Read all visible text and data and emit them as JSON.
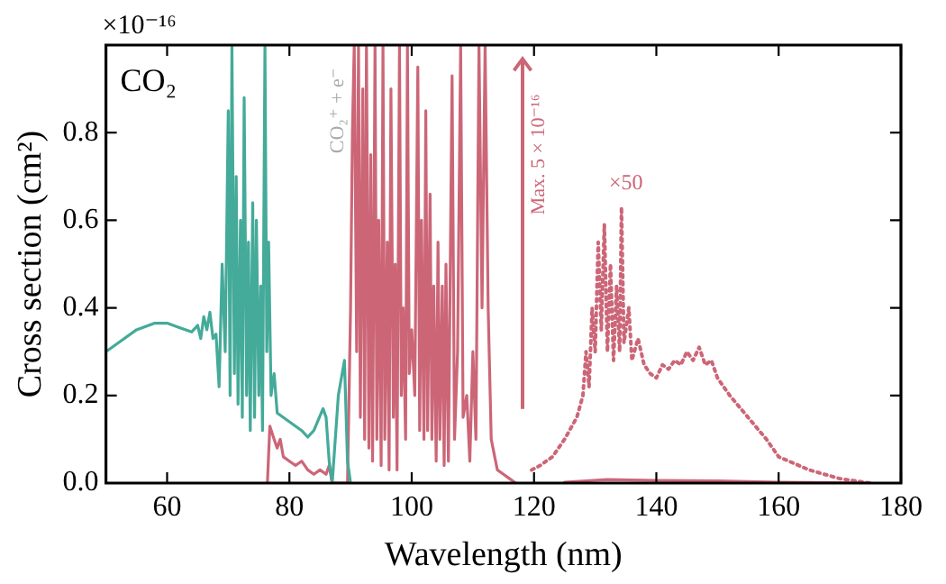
{
  "chart_data": {
    "type": "line",
    "xlabel": "Wavelength (nm)",
    "ylabel": "Cross section (cm²)",
    "xlim": [
      50,
      180
    ],
    "xticks": [
      60,
      80,
      100,
      120,
      140,
      160,
      180
    ],
    "ylim": [
      0,
      1
    ],
    "yticks": [
      {
        "value": 0,
        "label": "0.0"
      },
      0.2,
      0.4,
      0.6,
      0.8
    ],
    "grid": false,
    "legend": false,
    "marker": "none",
    "annotations": [
      "CO₂",
      "×10⁻¹⁶",
      "CO₂⁺ + e⁻",
      "Max. 5 × 10⁻¹⁶",
      "×50"
    ],
    "series": [
      {
        "color": "#44aa99",
        "line_style": "solid",
        "x": [
          50,
          52,
          55,
          58,
          60,
          62,
          64,
          65,
          65.5,
          66,
          66.5,
          67,
          67.5,
          68,
          68.5,
          69,
          69.5,
          70,
          70.3,
          70.6,
          71,
          71.3,
          71.6,
          72,
          72.3,
          72.6,
          73,
          73.3,
          73.6,
          74,
          74.3,
          74.6,
          75,
          75.3,
          75.6,
          76,
          76.3,
          76.6,
          77,
          77.5,
          78,
          80,
          82,
          83,
          84,
          85.5,
          86,
          86.5,
          87,
          88,
          89,
          89.5,
          90
        ],
        "values": [
          0.3,
          0.32,
          0.35,
          0.365,
          0.365,
          0.355,
          0.345,
          0.36,
          0.33,
          0.38,
          0.35,
          0.39,
          0.33,
          0.34,
          0.22,
          0.5,
          0.3,
          0.85,
          0.2,
          1.0,
          0.25,
          0.7,
          0.18,
          0.6,
          0.15,
          0.88,
          0.2,
          0.55,
          0.12,
          0.64,
          0.15,
          0.6,
          0.2,
          0.45,
          0.12,
          1.0,
          0.3,
          0.55,
          0.2,
          0.25,
          0.16,
          0.14,
          0.12,
          0.105,
          0.12,
          0.17,
          0.15,
          0.05,
          0.0,
          0.2,
          0.28,
          0.05,
          0.0
        ]
      },
      {
        "color": "#cc6677",
        "line_style": "solid",
        "x": [
          76.4,
          76.8,
          77.5,
          78,
          78.5,
          79,
          80,
          81,
          82,
          83,
          84,
          85,
          86,
          86.5,
          87,
          89.5,
          90,
          90.3,
          90.6,
          91,
          91.3,
          91.6,
          92,
          92.3,
          92.6,
          93,
          93.3,
          93.6,
          94,
          94.3,
          94.6,
          95,
          95.3,
          95.6,
          96,
          96.3,
          96.6,
          97,
          97.3,
          97.6,
          98,
          98.3,
          98.6,
          99,
          99.3,
          99.6,
          100,
          100.5,
          101,
          101.3,
          101.6,
          102,
          102.3,
          102.6,
          103,
          103.3,
          103.6,
          104,
          104.3,
          104.6,
          105,
          105.3,
          105.6,
          106,
          106.6,
          107,
          107.5,
          108,
          108.4,
          109,
          109.5,
          110,
          110.5,
          111,
          111.5,
          112,
          112.5,
          113,
          114,
          115,
          116,
          117
        ],
        "values": [
          0,
          0.13,
          0.1,
          0.08,
          0.1,
          0.06,
          0.05,
          0.04,
          0.05,
          0.03,
          0.02,
          0.03,
          0.02,
          0.04,
          0,
          0,
          0.4,
          0.8,
          1.0,
          0.3,
          1.0,
          0.15,
          0.9,
          0.1,
          1.0,
          0.08,
          0.75,
          0.05,
          1.0,
          0.1,
          0.6,
          0.04,
          1.0,
          0.1,
          0.55,
          0.03,
          0.9,
          0.15,
          0.5,
          0.03,
          1.0,
          0.2,
          0.4,
          0.1,
          1.0,
          0.25,
          0.35,
          0.2,
          0.95,
          0.12,
          0.6,
          0.1,
          0.85,
          0.12,
          0.66,
          0.1,
          0.45,
          0.05,
          0.55,
          0.1,
          0.45,
          0.04,
          0.5,
          0.05,
          0.93,
          0.1,
          0.3,
          1.0,
          0.15,
          0.2,
          0.05,
          0.3,
          0.1,
          1.0,
          0.4,
          1.0,
          0.4,
          0.1,
          0.03,
          0.02,
          0.01,
          0
        ]
      },
      {
        "color": "#cc6677",
        "line_style": "solid",
        "x": [
          125,
          132,
          140,
          150,
          160,
          170,
          175
        ],
        "values": [
          0.002,
          0.008,
          0.006,
          0.005,
          0.002,
          0.001,
          0
        ]
      },
      {
        "color": "#cc6677",
        "line_style": "dotted",
        "x": [
          119.6,
          121,
          123,
          125,
          127,
          128,
          128.5,
          129,
          129.5,
          130,
          130.5,
          131,
          131.5,
          132,
          132.5,
          133,
          133.5,
          134,
          134.3,
          134.7,
          135.5,
          136,
          137,
          138,
          139,
          140,
          141,
          142,
          143,
          144,
          145,
          146,
          147,
          148,
          149,
          150,
          152,
          155,
          158,
          160,
          165,
          170,
          175
        ],
        "values": [
          0.03,
          0.04,
          0.06,
          0.1,
          0.15,
          0.2,
          0.3,
          0.22,
          0.4,
          0.3,
          0.55,
          0.35,
          0.59,
          0.3,
          0.5,
          0.28,
          0.45,
          0.3,
          0.63,
          0.32,
          0.4,
          0.28,
          0.33,
          0.27,
          0.25,
          0.24,
          0.27,
          0.26,
          0.28,
          0.27,
          0.3,
          0.28,
          0.31,
          0.27,
          0.28,
          0.24,
          0.2,
          0.15,
          0.1,
          0.06,
          0.03,
          0.01,
          0
        ]
      }
    ]
  }
}
